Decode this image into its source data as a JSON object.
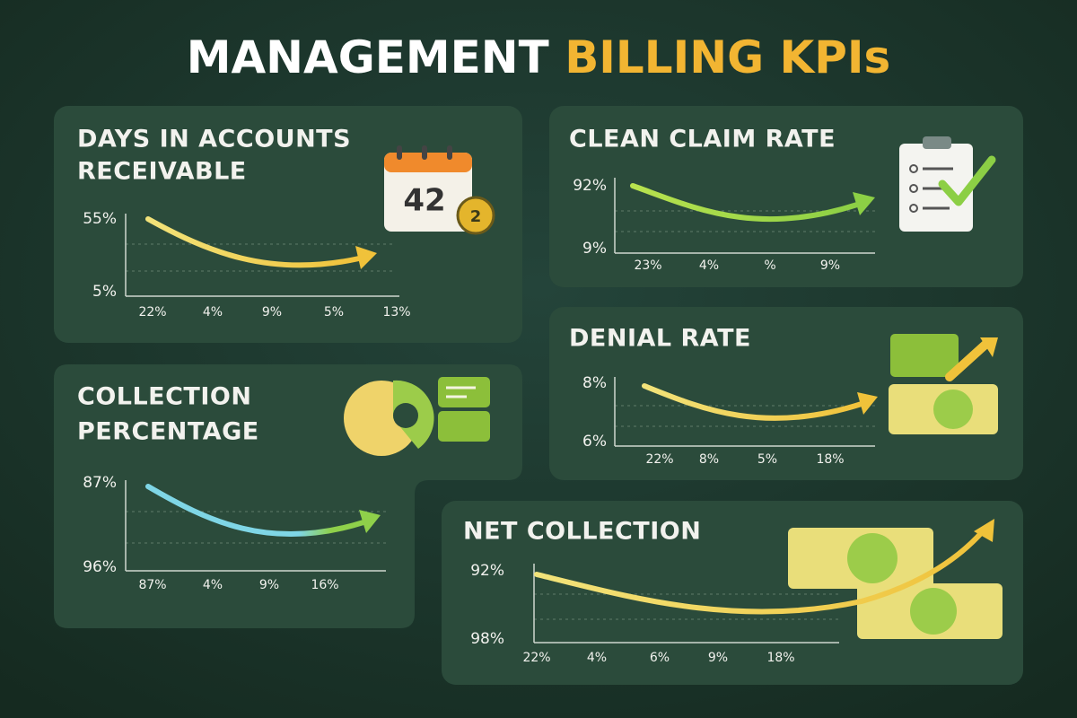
{
  "header": {
    "title_part1": "MANAGEMENT",
    "title_part2": "BILLING KPIs"
  },
  "panels": [
    {
      "title_lines": [
        "DAYS IN ACCOUNTS",
        "RECEIVABLE"
      ],
      "y_labels": [
        "55%",
        "5%"
      ],
      "x_labels": [
        "22%",
        "4%",
        "9%",
        "5%",
        "13%"
      ],
      "icon_text": "42",
      "icon_badge": "2"
    },
    {
      "title_lines": [
        "CLEAN CLAIM RATE"
      ],
      "y_labels": [
        "92%",
        "9%"
      ],
      "x_labels": [
        "23%",
        "4%",
        "%",
        "9%"
      ]
    },
    {
      "title_lines": [
        "COLLECTION",
        "PERCENTAGE"
      ],
      "y_labels": [
        "87%",
        "96%"
      ],
      "x_labels": [
        "87%",
        "4%",
        "9%",
        "16%"
      ]
    },
    {
      "title_lines": [
        "DENIAL RATE"
      ],
      "y_labels": [
        "8%",
        "6%"
      ],
      "x_labels": [
        "22%",
        "8%",
        "5%",
        "18%"
      ]
    },
    {
      "title_lines": [
        "NET COLLECTION"
      ],
      "y_labels": [
        "92%",
        "98%"
      ],
      "x_labels": [
        "22%",
        "4%",
        "6%",
        "9%",
        "18%"
      ]
    }
  ]
}
